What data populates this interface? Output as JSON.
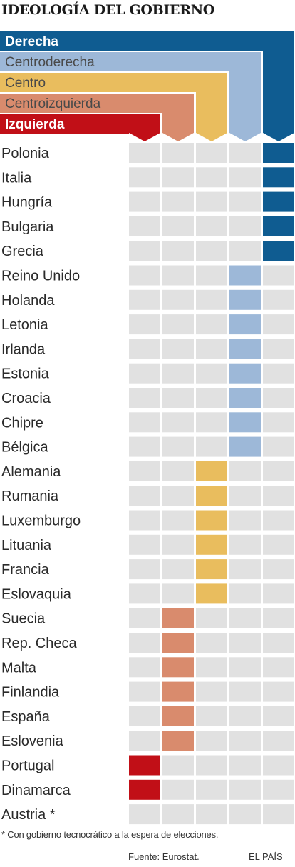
{
  "chart_data": {
    "type": "table",
    "title": "IDEOLOGÍA DEL GOBIERNO",
    "categories": [
      "Izquierda",
      "Centroizquierda",
      "Centro",
      "Centroderecha",
      "Derecha"
    ],
    "colors": {
      "Izquierda": "#c10f17",
      "Centroizquierda": "#d98b6d",
      "Centro": "#e9bd5e",
      "Centroderecha": "#9db8d8",
      "Derecha": "#0f5c91",
      "empty": "#e1e1e1"
    },
    "rows": [
      {
        "country": "Polonia",
        "ideology": "Derecha"
      },
      {
        "country": "Italia",
        "ideology": "Derecha"
      },
      {
        "country": "Hungría",
        "ideology": "Derecha"
      },
      {
        "country": "Bulgaria",
        "ideology": "Derecha"
      },
      {
        "country": "Grecia",
        "ideology": "Derecha"
      },
      {
        "country": "Reino Unido",
        "ideology": "Centroderecha"
      },
      {
        "country": "Holanda",
        "ideology": "Centroderecha"
      },
      {
        "country": "Letonia",
        "ideology": "Centroderecha"
      },
      {
        "country": "Irlanda",
        "ideology": "Centroderecha"
      },
      {
        "country": "Estonia",
        "ideology": "Centroderecha"
      },
      {
        "country": "Croacia",
        "ideology": "Centroderecha"
      },
      {
        "country": "Chipre",
        "ideology": "Centroderecha"
      },
      {
        "country": "Bélgica",
        "ideology": "Centroderecha"
      },
      {
        "country": "Alemania",
        "ideology": "Centro"
      },
      {
        "country": "Rumania",
        "ideology": "Centro"
      },
      {
        "country": "Luxemburgo",
        "ideology": "Centro"
      },
      {
        "country": "Lituania",
        "ideology": "Centro"
      },
      {
        "country": "Francia",
        "ideology": "Centro"
      },
      {
        "country": "Eslovaquia",
        "ideology": "Centro"
      },
      {
        "country": "Suecia",
        "ideology": "Centroizquierda"
      },
      {
        "country": "Rep. Checa",
        "ideology": "Centroizquierda"
      },
      {
        "country": "Malta",
        "ideology": "Centroizquierda"
      },
      {
        "country": "Finlandia",
        "ideology": "Centroizquierda"
      },
      {
        "country": "España",
        "ideology": "Centroizquierda"
      },
      {
        "country": "Eslovenia",
        "ideology": "Centroizquierda"
      },
      {
        "country": "Portugal",
        "ideology": "Izquierda"
      },
      {
        "country": "Dinamarca",
        "ideology": "Izquierda"
      },
      {
        "country": "Austria *",
        "ideology": ""
      }
    ],
    "footnote": "* Con gobierno tecnocrático a la espera de elecciones.",
    "source": "Fuente: Eurostat.",
    "brand": "EL PAÍS"
  }
}
